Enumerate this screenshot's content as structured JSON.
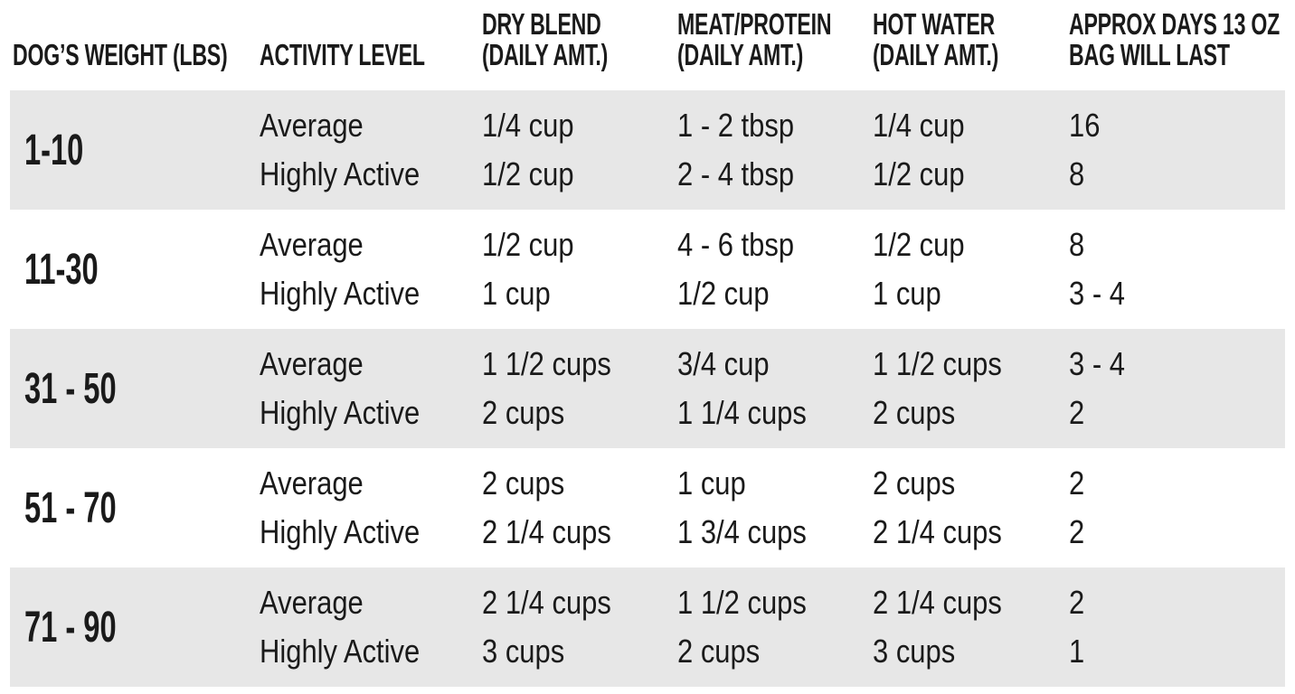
{
  "colors": {
    "band_gray": "#e7e7e7",
    "text": "#1a1a1a",
    "background": "#ffffff"
  },
  "feeding_chart": {
    "headers": [
      {
        "line1": "",
        "line2": "DOG’S WEIGHT (LBS)"
      },
      {
        "line1": "",
        "line2": "ACTIVITY LEVEL"
      },
      {
        "line1": "DRY BLEND",
        "line2": "(DAILY AMT.)"
      },
      {
        "line1": "MEAT/PROTEIN",
        "line2": "(DAILY AMT.)"
      },
      {
        "line1": "HOT WATER",
        "line2": "(DAILY AMT.)"
      },
      {
        "line1": "APPROX DAYS 13 OZ",
        "line2": "BAG WILL LAST"
      }
    ],
    "groups": [
      {
        "weight": "1-10",
        "rows": [
          {
            "activity": "Average",
            "dry_blend": "1/4 cup",
            "meat_protein": "1 - 2 tbsp",
            "hot_water": "1/4 cup",
            "days_bag_lasts": "16"
          },
          {
            "activity": "Highly Active",
            "dry_blend": "1/2 cup",
            "meat_protein": "2 - 4 tbsp",
            "hot_water": "1/2 cup",
            "days_bag_lasts": "8"
          }
        ]
      },
      {
        "weight": "11-30",
        "rows": [
          {
            "activity": "Average",
            "dry_blend": "1/2 cup",
            "meat_protein": "4 - 6 tbsp",
            "hot_water": "1/2 cup",
            "days_bag_lasts": "8"
          },
          {
            "activity": "Highly Active",
            "dry_blend": "1 cup",
            "meat_protein": "1/2 cup",
            "hot_water": "1 cup",
            "days_bag_lasts": "3 - 4"
          }
        ]
      },
      {
        "weight": "31 - 50",
        "rows": [
          {
            "activity": "Average",
            "dry_blend": "1 1/2 cups",
            "meat_protein": "3/4 cup",
            "hot_water": "1 1/2 cups",
            "days_bag_lasts": "3 - 4"
          },
          {
            "activity": "Highly Active",
            "dry_blend": "2 cups",
            "meat_protein": "1 1/4 cups",
            "hot_water": "2 cups",
            "days_bag_lasts": "2"
          }
        ]
      },
      {
        "weight": "51 - 70",
        "rows": [
          {
            "activity": "Average",
            "dry_blend": "2 cups",
            "meat_protein": "1 cup",
            "hot_water": "2 cups",
            "days_bag_lasts": "2"
          },
          {
            "activity": "Highly Active",
            "dry_blend": "2 1/4 cups",
            "meat_protein": "1 3/4 cups",
            "hot_water": "2 1/4 cups",
            "days_bag_lasts": "2"
          }
        ]
      },
      {
        "weight": "71 - 90",
        "rows": [
          {
            "activity": "Average",
            "dry_blend": "2 1/4 cups",
            "meat_protein": "1 1/2 cups",
            "hot_water": "2 1/4 cups",
            "days_bag_lasts": "2"
          },
          {
            "activity": "Highly Active",
            "dry_blend": "3 cups",
            "meat_protein": "2 cups",
            "hot_water": "3 cups",
            "days_bag_lasts": "1"
          }
        ]
      }
    ]
  }
}
